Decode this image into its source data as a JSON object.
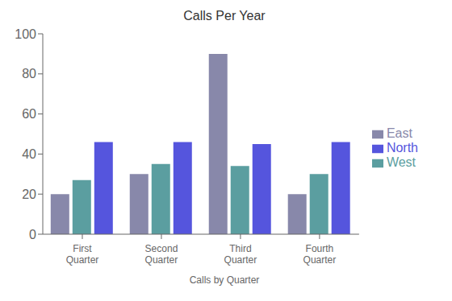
{
  "chart_data": {
    "type": "bar",
    "title": "Calls Per Year",
    "subtitle": "Calls by Quarter",
    "categories": [
      "First\nQuarter",
      "Second\nQuarter",
      "Third\nQuarter",
      "Fourth\nQuarter"
    ],
    "series": [
      {
        "name": "East",
        "color": "#8888aa",
        "values": [
          20,
          30,
          90,
          20
        ]
      },
      {
        "name": "West",
        "color": "#5b9ea0",
        "values": [
          27,
          35,
          34,
          30
        ]
      },
      {
        "name": "North",
        "color": "#5555dd",
        "values": [
          46,
          46,
          45,
          46
        ]
      }
    ],
    "ylim": [
      0,
      100
    ],
    "yticks": [
      0,
      20,
      40,
      60,
      80,
      100
    ],
    "grid": false,
    "legend": "right"
  }
}
